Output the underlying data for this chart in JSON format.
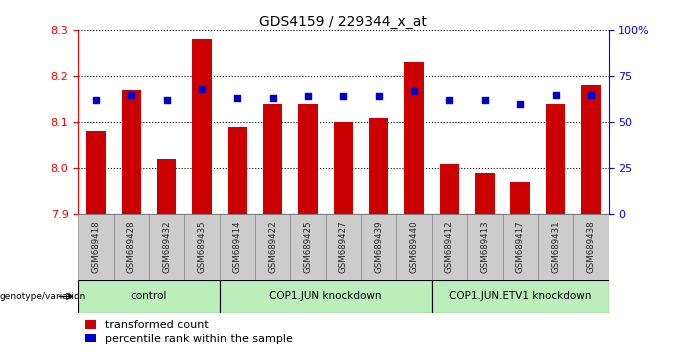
{
  "title": "GDS4159 / 229344_x_at",
  "samples": [
    "GSM689418",
    "GSM689428",
    "GSM689432",
    "GSM689435",
    "GSM689414",
    "GSM689422",
    "GSM689425",
    "GSM689427",
    "GSM689439",
    "GSM689440",
    "GSM689412",
    "GSM689413",
    "GSM689417",
    "GSM689431",
    "GSM689438"
  ],
  "transformed_counts": [
    8.08,
    8.17,
    8.02,
    8.28,
    8.09,
    8.14,
    8.14,
    8.1,
    8.11,
    8.23,
    8.01,
    7.99,
    7.97,
    8.14,
    8.18
  ],
  "percentile_ranks": [
    62,
    65,
    62,
    68,
    63,
    63,
    64,
    64,
    64,
    67,
    62,
    62,
    60,
    65,
    65
  ],
  "groups": [
    {
      "label": "control",
      "start": 0,
      "end": 4
    },
    {
      "label": "COP1.JUN knockdown",
      "start": 4,
      "end": 10
    },
    {
      "label": "COP1.JUN.ETV1 knockdown",
      "start": 10,
      "end": 15
    }
  ],
  "y_min": 7.9,
  "y_max": 8.3,
  "y_ticks": [
    7.9,
    8.0,
    8.1,
    8.2,
    8.3
  ],
  "y2_ticks": [
    0,
    25,
    50,
    75,
    100
  ],
  "bar_color": "#cc0000",
  "dot_color": "#0000cc",
  "bar_bottom": 7.9,
  "sample_box_color": "#cccccc",
  "sample_box_edge": "#888888",
  "group_color_light": "#bbeebb",
  "group_color_dark": "#88dd88",
  "tick_label_color": "#444444",
  "grid_color": "#000000"
}
